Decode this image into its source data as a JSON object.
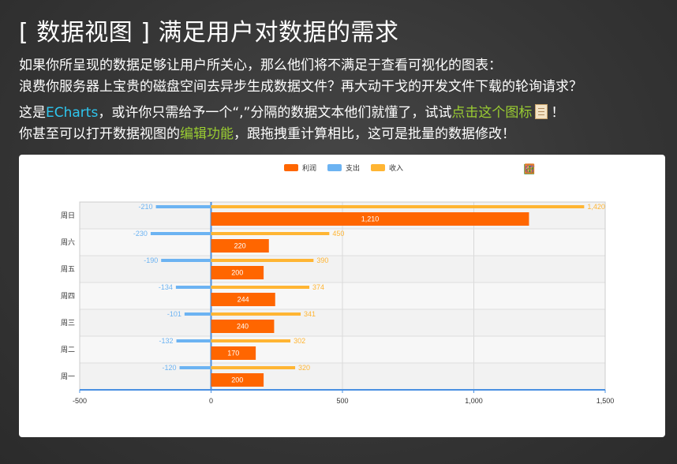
{
  "header": {
    "title": "[ 数据视图 ] 满足用户对数据的需求"
  },
  "intro": {
    "line1": "如果你所呈现的数据足够让用户所关心，那么他们将不满足于查看可视化的图表：",
    "line2": "浪费你服务器上宝贵的磁盘空间去异步生成数据文件？再大动干戈的开发文件下载的轮询请求？",
    "line3_a": "这是",
    "line3_echarts": "ECharts",
    "line3_b": "，或许你只需给予一个“,”分隔的数据文本他们就懂了，试试",
    "line3_link": "点击这个图标",
    "line3_c": "！",
    "line4_a": "你甚至可以打开数据视图的",
    "line4_link": "编辑功能",
    "line4_b": "，跟拖拽重计算相比，这可是批量的数据修改！"
  },
  "colors": {
    "profit": "#ff6600",
    "expense": "#6cb3f2",
    "income": "#ffb533",
    "accent_blue": "#2ec7f0",
    "accent_green": "#9acd32"
  },
  "toolbox": [
    {
      "icon": "mark-pen-icon",
      "color": "#1e90ff"
    },
    {
      "icon": "erase-mark-icon",
      "color": "#bbbbbb"
    },
    {
      "icon": "clear-mark-icon",
      "color": "#bbbbbb"
    },
    {
      "icon": "data-view-icon",
      "color": "#e27a21"
    },
    {
      "icon": "line-chart-icon",
      "color": "#1e90ff"
    },
    {
      "icon": "bar-chart-icon",
      "color": "#2ca02c"
    },
    {
      "icon": "restore-icon",
      "color": "#7b3fc4"
    },
    {
      "icon": "save-image-icon",
      "color": "#e27a21"
    }
  ],
  "chart_data": {
    "type": "bar",
    "orientation": "horizontal",
    "categories": [
      "周一",
      "周二",
      "周三",
      "周四",
      "周五",
      "周六",
      "周日"
    ],
    "series": [
      {
        "name": "利润",
        "values": [
          200,
          170,
          240,
          244,
          200,
          220,
          1210
        ],
        "color": "#ff6600"
      },
      {
        "name": "支出",
        "values": [
          -120,
          -132,
          -101,
          -134,
          -190,
          -230,
          -210
        ],
        "color": "#6cb3f2"
      },
      {
        "name": "收入",
        "values": [
          320,
          302,
          341,
          374,
          390,
          450,
          1420
        ],
        "color": "#ffb533"
      }
    ],
    "value_labels": {
      "利润": [
        "200",
        "170",
        "240",
        "244",
        "200",
        "220",
        "1,210"
      ],
      "支出": [
        "-120",
        "-132",
        "-101",
        "-134",
        "-190",
        "-230",
        "-210"
      ],
      "收入": [
        "320",
        "302",
        "341",
        "374",
        "390",
        "450",
        "1,420"
      ]
    },
    "x_ticks": [
      -500,
      0,
      500,
      1000,
      1500
    ],
    "x_tick_labels": [
      "-500",
      "0",
      "500",
      "1,000",
      "1,500"
    ],
    "xlim": [
      -500,
      1500
    ],
    "legend_position": "top-center",
    "grid": true
  }
}
